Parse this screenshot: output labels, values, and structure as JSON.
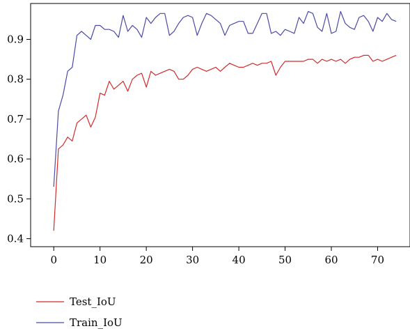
{
  "chart_data": {
    "type": "line",
    "title": "",
    "xlabel": "",
    "ylabel": "",
    "xlim": [
      -5,
      77
    ],
    "ylim": [
      0.38,
      0.99
    ],
    "x_ticks": [
      0,
      10,
      20,
      30,
      40,
      50,
      60,
      70
    ],
    "y_ticks": [
      0.4,
      0.5,
      0.6,
      0.7,
      0.8,
      0.9
    ],
    "grid": false,
    "legend_position": "bottom-left",
    "series": [
      {
        "name": "Test_IoU",
        "color": "#d22b2b",
        "x": [
          0,
          1,
          2,
          3,
          4,
          5,
          6,
          7,
          8,
          9,
          10,
          11,
          12,
          13,
          14,
          15,
          16,
          17,
          18,
          19,
          20,
          21,
          22,
          23,
          24,
          25,
          26,
          27,
          28,
          29,
          30,
          31,
          32,
          33,
          34,
          35,
          36,
          37,
          38,
          39,
          40,
          41,
          42,
          43,
          44,
          45,
          46,
          47,
          48,
          49,
          50,
          51,
          52,
          53,
          54,
          55,
          56,
          57,
          58,
          59,
          60,
          61,
          62,
          63,
          64,
          65,
          66,
          67,
          68,
          69,
          70,
          71,
          72,
          73,
          74
        ],
        "values": [
          0.42,
          0.625,
          0.635,
          0.655,
          0.645,
          0.69,
          0.7,
          0.71,
          0.68,
          0.705,
          0.765,
          0.76,
          0.795,
          0.775,
          0.785,
          0.795,
          0.77,
          0.8,
          0.81,
          0.815,
          0.78,
          0.82,
          0.81,
          0.815,
          0.82,
          0.825,
          0.82,
          0.8,
          0.8,
          0.81,
          0.825,
          0.83,
          0.825,
          0.82,
          0.825,
          0.83,
          0.82,
          0.83,
          0.84,
          0.835,
          0.83,
          0.83,
          0.835,
          0.84,
          0.835,
          0.84,
          0.84,
          0.845,
          0.81,
          0.83,
          0.845,
          0.845,
          0.845,
          0.845,
          0.845,
          0.85,
          0.85,
          0.84,
          0.85,
          0.845,
          0.85,
          0.845,
          0.85,
          0.84,
          0.85,
          0.855,
          0.855,
          0.86,
          0.86,
          0.845,
          0.85,
          0.845,
          0.85,
          0.855,
          0.86
        ]
      },
      {
        "name": "Train_IoU",
        "color": "#4a4aa8",
        "x": [
          0,
          1,
          2,
          3,
          4,
          5,
          6,
          7,
          8,
          9,
          10,
          11,
          12,
          13,
          14,
          15,
          16,
          17,
          18,
          19,
          20,
          21,
          22,
          23,
          24,
          25,
          26,
          27,
          28,
          29,
          30,
          31,
          32,
          33,
          34,
          35,
          36,
          37,
          38,
          39,
          40,
          41,
          42,
          43,
          44,
          45,
          46,
          47,
          48,
          49,
          50,
          51,
          52,
          53,
          54,
          55,
          56,
          57,
          58,
          59,
          60,
          61,
          62,
          63,
          64,
          65,
          66,
          67,
          68,
          69,
          70,
          71,
          72,
          73,
          74
        ],
        "values": [
          0.53,
          0.72,
          0.76,
          0.82,
          0.83,
          0.91,
          0.92,
          0.91,
          0.9,
          0.935,
          0.935,
          0.925,
          0.925,
          0.92,
          0.905,
          0.96,
          0.92,
          0.935,
          0.925,
          0.905,
          0.955,
          0.94,
          0.955,
          0.965,
          0.965,
          0.91,
          0.92,
          0.94,
          0.955,
          0.96,
          0.955,
          0.91,
          0.94,
          0.965,
          0.96,
          0.95,
          0.94,
          0.91,
          0.935,
          0.94,
          0.945,
          0.945,
          0.915,
          0.915,
          0.94,
          0.965,
          0.965,
          0.915,
          0.92,
          0.91,
          0.925,
          0.92,
          0.915,
          0.955,
          0.94,
          0.97,
          0.965,
          0.93,
          0.92,
          0.965,
          0.915,
          0.92,
          0.97,
          0.94,
          0.93,
          0.925,
          0.955,
          0.96,
          0.945,
          0.92,
          0.955,
          0.945,
          0.965,
          0.95,
          0.945
        ]
      }
    ]
  }
}
